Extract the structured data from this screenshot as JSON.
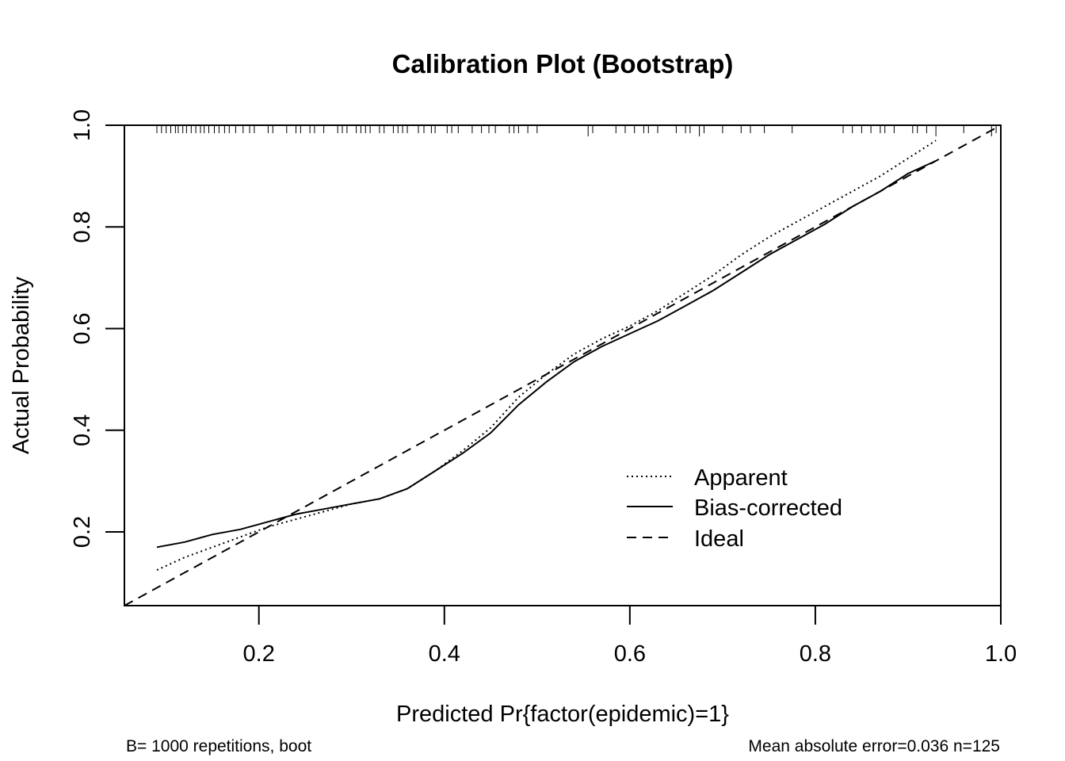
{
  "chart_data": {
    "type": "line",
    "title": "Calibration Plot (Bootstrap)",
    "xlabel": "Predicted Pr{factor(epidemic)=1}",
    "ylabel": "Actual Probability",
    "xlim": [
      0.055,
      1.0
    ],
    "ylim": [
      0.055,
      1.0
    ],
    "x_ticks": [
      0.2,
      0.4,
      0.6,
      0.8,
      1.0
    ],
    "x_tick_labels": [
      "0.2",
      "0.4",
      "0.6",
      "0.8",
      "1.0"
    ],
    "y_ticks": [
      0.2,
      0.4,
      0.6,
      0.8,
      1.0
    ],
    "y_tick_labels": [
      "0.2",
      "0.4",
      "0.6",
      "0.8",
      "1.0"
    ],
    "grid": false,
    "legend_position": "bottom-right",
    "series": [
      {
        "name": "Apparent",
        "style": "dotted",
        "x": [
          0.09,
          0.12,
          0.15,
          0.18,
          0.21,
          0.24,
          0.27,
          0.3,
          0.33,
          0.36,
          0.39,
          0.42,
          0.45,
          0.48,
          0.51,
          0.54,
          0.57,
          0.6,
          0.63,
          0.66,
          0.69,
          0.72,
          0.75,
          0.78,
          0.81,
          0.84,
          0.87,
          0.9,
          0.93
        ],
        "y": [
          0.125,
          0.15,
          0.17,
          0.19,
          0.21,
          0.225,
          0.24,
          0.255,
          0.265,
          0.285,
          0.32,
          0.36,
          0.405,
          0.465,
          0.51,
          0.55,
          0.58,
          0.605,
          0.635,
          0.67,
          0.705,
          0.745,
          0.78,
          0.81,
          0.84,
          0.87,
          0.9,
          0.935,
          0.97
        ]
      },
      {
        "name": "Bias-corrected",
        "style": "solid",
        "x": [
          0.09,
          0.12,
          0.15,
          0.18,
          0.21,
          0.24,
          0.27,
          0.3,
          0.33,
          0.36,
          0.39,
          0.42,
          0.45,
          0.48,
          0.51,
          0.54,
          0.57,
          0.6,
          0.63,
          0.66,
          0.69,
          0.72,
          0.75,
          0.78,
          0.81,
          0.84,
          0.87,
          0.9,
          0.93
        ],
        "y": [
          0.17,
          0.18,
          0.195,
          0.205,
          0.22,
          0.235,
          0.245,
          0.255,
          0.265,
          0.285,
          0.32,
          0.355,
          0.395,
          0.45,
          0.495,
          0.535,
          0.565,
          0.59,
          0.615,
          0.645,
          0.675,
          0.71,
          0.745,
          0.775,
          0.805,
          0.84,
          0.87,
          0.905,
          0.93
        ]
      },
      {
        "name": "Ideal",
        "style": "dashed",
        "x": [
          0.055,
          1.0
        ],
        "y": [
          0.055,
          1.0
        ]
      }
    ],
    "rug_x": [
      0.09,
      0.095,
      0.1,
      0.105,
      0.11,
      0.113,
      0.118,
      0.122,
      0.127,
      0.132,
      0.137,
      0.141,
      0.146,
      0.152,
      0.157,
      0.163,
      0.168,
      0.175,
      0.183,
      0.19,
      0.195,
      0.21,
      0.215,
      0.23,
      0.24,
      0.245,
      0.255,
      0.26,
      0.27,
      0.285,
      0.29,
      0.295,
      0.305,
      0.31,
      0.315,
      0.32,
      0.33,
      0.335,
      0.345,
      0.35,
      0.355,
      0.36,
      0.372,
      0.378,
      0.386,
      0.39,
      0.403,
      0.408,
      0.415,
      0.43,
      0.44,
      0.448,
      0.455,
      0.47,
      0.475,
      0.48,
      0.49,
      0.5,
      0.555,
      0.56,
      0.585,
      0.595,
      0.605,
      0.615,
      0.62,
      0.63,
      0.65,
      0.66,
      0.665,
      0.675,
      0.68,
      0.7,
      0.72,
      0.73,
      0.745,
      0.775,
      0.83,
      0.84,
      0.85,
      0.86,
      0.87,
      0.875,
      0.885,
      0.905,
      0.91,
      0.92,
      0.93,
      0.96,
      0.99,
      0.995
    ],
    "rug_major": [
      0.555,
      0.675,
      0.93,
      0.955,
      0.99
    ]
  },
  "legend": {
    "items": [
      "Apparent",
      "Bias-corrected",
      "Ideal"
    ]
  },
  "footer": {
    "left": "B= 1000 repetitions, boot",
    "right": "Mean absolute error=0.036 n=125"
  }
}
